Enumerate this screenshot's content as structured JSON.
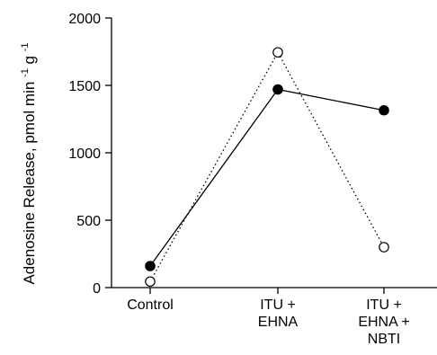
{
  "chart_data": {
    "type": "line",
    "title": "",
    "xlabel": "",
    "ylabel": "Adenosine Release, pmol min",
    "ylabel_sup1": "-1",
    "ylabel_mid": " g",
    "ylabel_sup2": "-1",
    "categories": [
      [
        "Control"
      ],
      [
        "ITU +",
        "EHNA"
      ],
      [
        "ITU +",
        "EHNA +",
        "NBTI"
      ]
    ],
    "ylim": [
      0,
      2000
    ],
    "yticks": [
      0,
      500,
      1000,
      1500,
      2000
    ],
    "grid": false,
    "legend": "none",
    "series": [
      {
        "style": "solid",
        "marker": "filled-circle",
        "color": "#000000",
        "values": [
          160,
          1470,
          1315
        ]
      },
      {
        "style": "dotted",
        "marker": "open-circle",
        "color": "#000000",
        "values": [
          45,
          1745,
          300
        ]
      }
    ]
  }
}
